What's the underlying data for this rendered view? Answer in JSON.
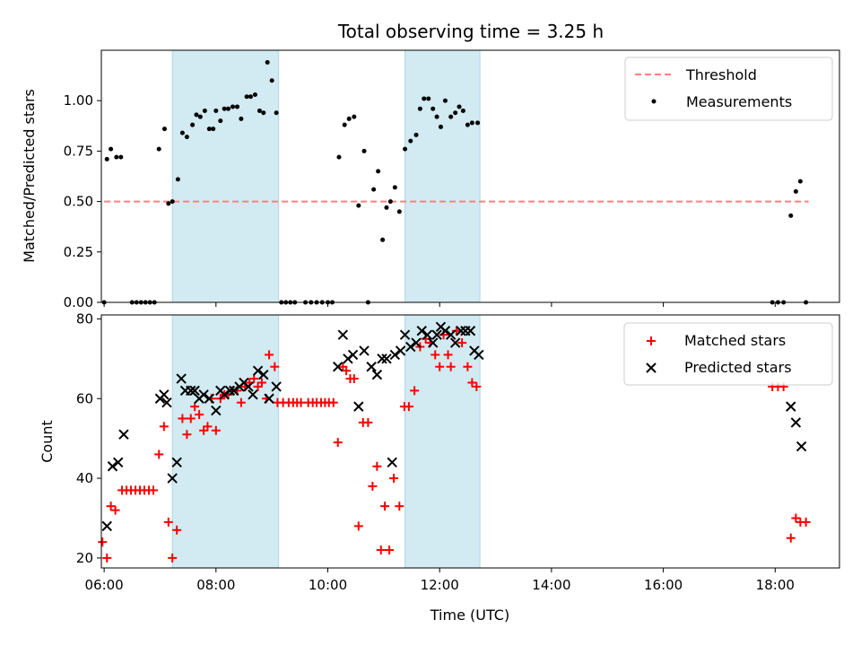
{
  "title": "Total observing time = 3.25 h",
  "colors": {
    "threshold": "#ff7f7f",
    "measurement": "#000000",
    "matched": "#ff0000",
    "predicted": "#000000",
    "observing_span": "#add8e6"
  },
  "chart_data": [
    {
      "type": "scatter",
      "ylabel": "Matched/Predicted stars",
      "xlim": [
        5.95,
        19.15
      ],
      "ylim": [
        0,
        1.25
      ],
      "yticks": [
        0,
        0.25,
        0.5,
        0.75,
        1.0
      ],
      "ytick_labels": [
        "0.00",
        "0.25",
        "0.50",
        "0.75",
        "1.00"
      ],
      "shaded_spans_hours": [
        [
          7.22,
          9.12
        ],
        [
          11.38,
          12.72
        ]
      ],
      "legend": {
        "location": "upper right",
        "entries": [
          "Threshold",
          "Measurements"
        ]
      },
      "threshold": {
        "name": "Threshold",
        "value": 0.5,
        "x_range": [
          6.0,
          18.6
        ],
        "style": "dashed"
      },
      "series": [
        {
          "name": "Measurements",
          "points": [
            [
              6.0,
              0.0
            ],
            [
              6.05,
              0.71
            ],
            [
              6.12,
              0.76
            ],
            [
              6.22,
              0.72
            ],
            [
              6.3,
              0.72
            ],
            [
              6.5,
              0.0
            ],
            [
              6.58,
              0.0
            ],
            [
              6.66,
              0.0
            ],
            [
              6.74,
              0.0
            ],
            [
              6.82,
              0.0
            ],
            [
              6.9,
              0.0
            ],
            [
              6.98,
              0.76
            ],
            [
              7.08,
              0.86
            ],
            [
              7.15,
              0.49
            ],
            [
              7.22,
              0.5
            ],
            [
              7.32,
              0.61
            ],
            [
              7.4,
              0.84
            ],
            [
              7.48,
              0.82
            ],
            [
              7.58,
              0.88
            ],
            [
              7.65,
              0.93
            ],
            [
              7.72,
              0.92
            ],
            [
              7.8,
              0.95
            ],
            [
              7.88,
              0.86
            ],
            [
              7.95,
              0.86
            ],
            [
              8.0,
              0.95
            ],
            [
              8.08,
              0.9
            ],
            [
              8.15,
              0.96
            ],
            [
              8.22,
              0.96
            ],
            [
              8.3,
              0.97
            ],
            [
              8.38,
              0.97
            ],
            [
              8.45,
              0.91
            ],
            [
              8.55,
              1.02
            ],
            [
              8.62,
              1.02
            ],
            [
              8.7,
              1.03
            ],
            [
              8.78,
              0.95
            ],
            [
              8.85,
              0.94
            ],
            [
              8.92,
              1.19
            ],
            [
              9.0,
              1.1
            ],
            [
              9.08,
              0.94
            ],
            [
              9.17,
              0.0
            ],
            [
              9.25,
              0.0
            ],
            [
              9.33,
              0.0
            ],
            [
              9.41,
              0.0
            ],
            [
              9.6,
              0.0
            ],
            [
              9.7,
              0.0
            ],
            [
              9.8,
              0.0
            ],
            [
              9.9,
              0.0
            ],
            [
              10.0,
              0.0
            ],
            [
              10.08,
              0.0
            ],
            [
              10.2,
              0.72
            ],
            [
              10.3,
              0.88
            ],
            [
              10.38,
              0.91
            ],
            [
              10.47,
              0.92
            ],
            [
              10.55,
              0.48
            ],
            [
              10.65,
              0.75
            ],
            [
              10.72,
              0.0
            ],
            [
              10.82,
              0.56
            ],
            [
              10.9,
              0.65
            ],
            [
              10.98,
              0.31
            ],
            [
              11.05,
              0.47
            ],
            [
              11.12,
              0.5
            ],
            [
              11.2,
              0.57
            ],
            [
              11.28,
              0.45
            ],
            [
              11.38,
              0.76
            ],
            [
              11.48,
              0.8
            ],
            [
              11.58,
              0.83
            ],
            [
              11.65,
              0.96
            ],
            [
              11.72,
              1.01
            ],
            [
              11.8,
              1.01
            ],
            [
              11.88,
              0.96
            ],
            [
              11.95,
              0.92
            ],
            [
              12.02,
              0.87
            ],
            [
              12.1,
              1.0
            ],
            [
              12.2,
              0.92
            ],
            [
              12.28,
              0.94
            ],
            [
              12.35,
              0.97
            ],
            [
              12.42,
              0.95
            ],
            [
              12.5,
              0.88
            ],
            [
              12.58,
              0.89
            ],
            [
              12.68,
              0.89
            ],
            [
              17.95,
              0.0
            ],
            [
              18.05,
              0.0
            ],
            [
              18.15,
              0.0
            ],
            [
              18.28,
              0.43
            ],
            [
              18.37,
              0.55
            ],
            [
              18.45,
              0.6
            ],
            [
              18.55,
              0.0
            ]
          ]
        }
      ]
    },
    {
      "type": "scatter",
      "xlabel": "Time (UTC)",
      "ylabel": "Count",
      "xlim": [
        5.95,
        19.15
      ],
      "ylim": [
        17.5,
        81
      ],
      "xticks": [
        6,
        8,
        10,
        12,
        14,
        16,
        18
      ],
      "xtick_labels": [
        "06:00",
        "08:00",
        "10:00",
        "12:00",
        "14:00",
        "16:00",
        "18:00"
      ],
      "yticks": [
        20,
        40,
        60,
        80
      ],
      "ytick_labels": [
        "20",
        "40",
        "60",
        "80"
      ],
      "shaded_spans_hours": [
        [
          7.22,
          9.12
        ],
        [
          11.38,
          12.72
        ]
      ],
      "legend": {
        "location": "upper right",
        "entries": [
          "Matched stars",
          "Predicted stars"
        ]
      },
      "series": [
        {
          "name": "Matched stars",
          "marker": "plus",
          "points": [
            [
              5.97,
              24
            ],
            [
              6.05,
              20
            ],
            [
              6.12,
              33
            ],
            [
              6.2,
              32
            ],
            [
              6.32,
              37
            ],
            [
              6.4,
              37
            ],
            [
              6.48,
              37
            ],
            [
              6.56,
              37
            ],
            [
              6.64,
              37
            ],
            [
              6.72,
              37
            ],
            [
              6.8,
              37
            ],
            [
              6.88,
              37
            ],
            [
              6.98,
              46
            ],
            [
              7.07,
              53
            ],
            [
              7.15,
              29
            ],
            [
              7.22,
              20
            ],
            [
              7.3,
              27
            ],
            [
              7.4,
              55
            ],
            [
              7.48,
              51
            ],
            [
              7.55,
              55
            ],
            [
              7.62,
              58
            ],
            [
              7.7,
              56
            ],
            [
              7.78,
              52
            ],
            [
              7.85,
              53
            ],
            [
              7.92,
              60
            ],
            [
              8.0,
              52
            ],
            [
              8.08,
              60
            ],
            [
              8.15,
              61
            ],
            [
              8.22,
              61
            ],
            [
              8.3,
              62
            ],
            [
              8.38,
              62
            ],
            [
              8.45,
              59
            ],
            [
              8.52,
              63
            ],
            [
              8.6,
              64
            ],
            [
              8.68,
              65
            ],
            [
              8.75,
              63
            ],
            [
              8.82,
              64
            ],
            [
              8.9,
              60
            ],
            [
              8.95,
              71
            ],
            [
              9.05,
              68
            ],
            [
              9.1,
              59
            ],
            [
              9.2,
              59
            ],
            [
              9.3,
              59
            ],
            [
              9.38,
              59
            ],
            [
              9.45,
              59
            ],
            [
              9.52,
              59
            ],
            [
              9.65,
              59
            ],
            [
              9.73,
              59
            ],
            [
              9.8,
              59
            ],
            [
              9.88,
              59
            ],
            [
              9.95,
              59
            ],
            [
              10.02,
              59
            ],
            [
              10.1,
              59
            ],
            [
              10.18,
              49
            ],
            [
              10.27,
              68
            ],
            [
              10.33,
              67
            ],
            [
              10.4,
              65
            ],
            [
              10.47,
              65
            ],
            [
              10.55,
              28
            ],
            [
              10.63,
              54
            ],
            [
              10.72,
              54
            ],
            [
              10.8,
              38
            ],
            [
              10.88,
              43
            ],
            [
              10.95,
              22
            ],
            [
              11.02,
              33
            ],
            [
              11.1,
              22
            ],
            [
              11.18,
              40
            ],
            [
              11.28,
              33
            ],
            [
              11.37,
              58
            ],
            [
              11.45,
              58
            ],
            [
              11.55,
              62
            ],
            [
              11.65,
              73
            ],
            [
              11.75,
              75
            ],
            [
              11.83,
              74
            ],
            [
              11.92,
              71
            ],
            [
              12.0,
              68
            ],
            [
              12.07,
              76
            ],
            [
              12.15,
              71
            ],
            [
              12.2,
              68
            ],
            [
              12.3,
              77
            ],
            [
              12.4,
              74
            ],
            [
              12.5,
              68
            ],
            [
              12.58,
              64
            ],
            [
              12.66,
              63
            ],
            [
              17.95,
              63
            ],
            [
              18.05,
              63
            ],
            [
              18.15,
              63
            ],
            [
              18.28,
              25
            ],
            [
              18.37,
              30
            ],
            [
              18.45,
              29
            ],
            [
              18.55,
              29
            ]
          ]
        },
        {
          "name": "Predicted stars",
          "marker": "x",
          "points": [
            [
              6.05,
              28
            ],
            [
              6.15,
              43
            ],
            [
              6.25,
              44
            ],
            [
              6.35,
              51
            ],
            [
              7.0,
              60
            ],
            [
              7.07,
              61
            ],
            [
              7.12,
              59
            ],
            [
              7.22,
              40
            ],
            [
              7.3,
              44
            ],
            [
              7.38,
              65
            ],
            [
              7.45,
              62
            ],
            [
              7.55,
              62
            ],
            [
              7.62,
              62
            ],
            [
              7.7,
              60
            ],
            [
              7.78,
              61
            ],
            [
              7.88,
              60
            ],
            [
              8.0,
              57
            ],
            [
              8.08,
              62
            ],
            [
              8.15,
              61
            ],
            [
              8.25,
              62
            ],
            [
              8.32,
              62
            ],
            [
              8.42,
              63
            ],
            [
              8.5,
              64
            ],
            [
              8.58,
              63
            ],
            [
              8.66,
              61
            ],
            [
              8.75,
              67
            ],
            [
              8.85,
              66
            ],
            [
              8.95,
              60
            ],
            [
              9.08,
              63
            ],
            [
              10.18,
              68
            ],
            [
              10.27,
              76
            ],
            [
              10.36,
              70
            ],
            [
              10.45,
              71
            ],
            [
              10.55,
              58
            ],
            [
              10.65,
              72
            ],
            [
              10.78,
              68
            ],
            [
              10.88,
              66
            ],
            [
              10.97,
              70
            ],
            [
              11.05,
              70
            ],
            [
              11.15,
              44
            ],
            [
              11.2,
              71
            ],
            [
              11.3,
              72
            ],
            [
              11.38,
              76
            ],
            [
              11.48,
              73
            ],
            [
              11.58,
              74
            ],
            [
              11.68,
              77
            ],
            [
              11.78,
              76
            ],
            [
              11.88,
              74
            ],
            [
              11.95,
              76
            ],
            [
              12.02,
              78
            ],
            [
              12.1,
              77
            ],
            [
              12.2,
              76
            ],
            [
              12.28,
              74
            ],
            [
              12.38,
              77
            ],
            [
              12.46,
              77
            ],
            [
              12.55,
              77
            ],
            [
              12.62,
              72
            ],
            [
              12.7,
              71
            ],
            [
              18.28,
              58
            ],
            [
              18.37,
              54
            ],
            [
              18.47,
              48
            ]
          ]
        }
      ]
    }
  ]
}
